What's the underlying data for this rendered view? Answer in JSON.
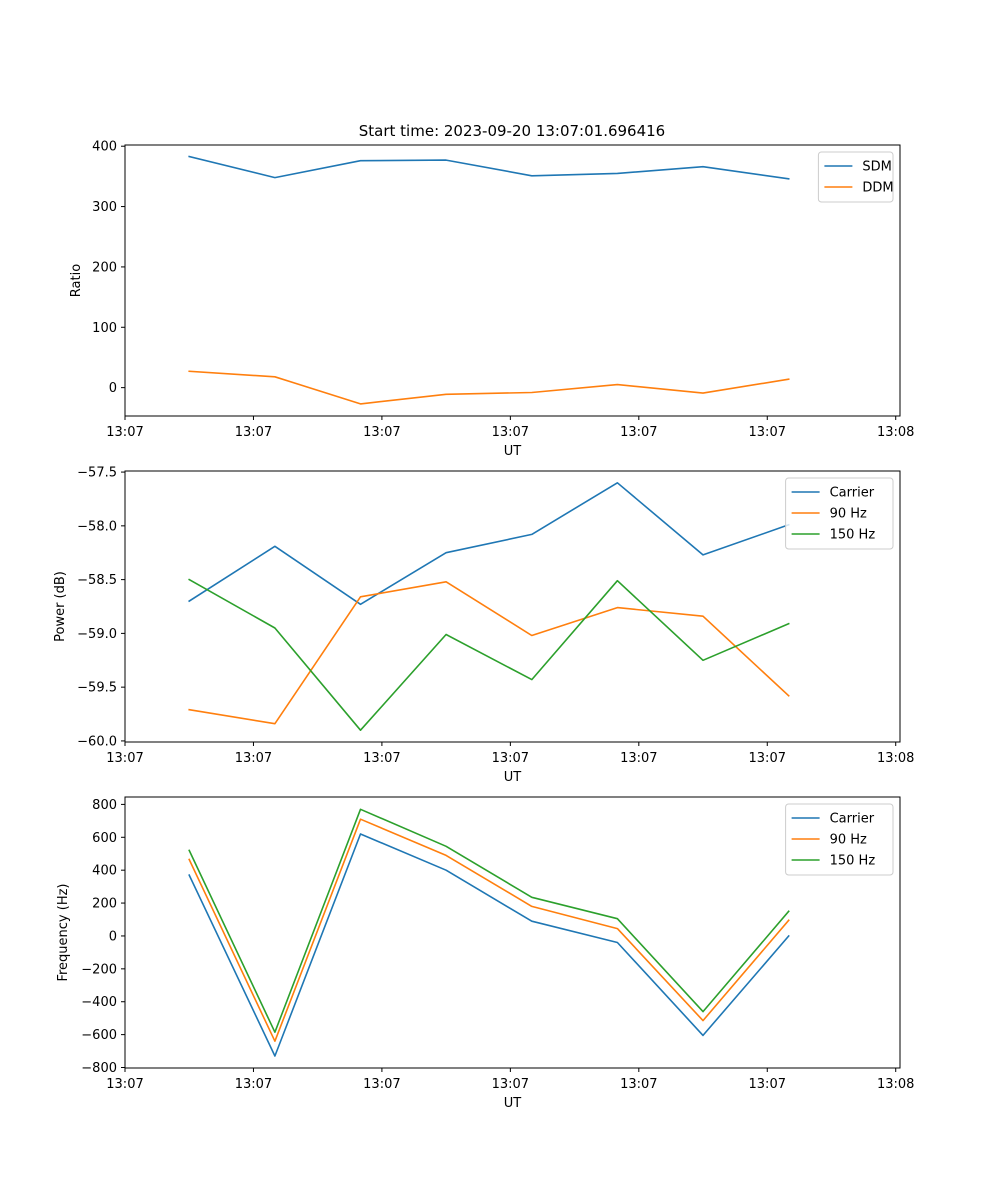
{
  "figure_title": "Start time: 2023-09-20 13:07:01.696416",
  "chart_data": [
    {
      "type": "line",
      "name": "ratio-panel",
      "xlabel": "UT",
      "ylabel": "Ratio",
      "x": [
        1,
        2,
        3,
        4,
        5,
        6,
        7,
        8
      ],
      "xlim": [
        0.25,
        9.3
      ],
      "xticks": [
        0.25,
        1.75,
        3.25,
        4.75,
        6.25,
        7.75,
        9.25
      ],
      "xtick_labels": [
        "13:07",
        "13:07",
        "13:07",
        "13:07",
        "13:07",
        "13:07",
        "13:08"
      ],
      "ylim": [
        -47,
        402
      ],
      "yticks": [
        0,
        100,
        200,
        300,
        400
      ],
      "ytick_labels": [
        "0",
        "100",
        "200",
        "300",
        "400"
      ],
      "legend": "top-right",
      "series": [
        {
          "name": "SDM",
          "color": "#1f77b4",
          "values": [
            383,
            348,
            376,
            377,
            351,
            355,
            366,
            346
          ]
        },
        {
          "name": "DDM",
          "color": "#ff7f0e",
          "values": [
            27,
            18,
            -27,
            -11,
            -8,
            5,
            -9,
            14
          ]
        }
      ]
    },
    {
      "type": "line",
      "name": "power-panel",
      "xlabel": "UT",
      "ylabel": "Power (dB)",
      "x": [
        1,
        2,
        3,
        4,
        5,
        6,
        7,
        8
      ],
      "xlim": [
        0.25,
        9.3
      ],
      "xticks": [
        0.25,
        1.75,
        3.25,
        4.75,
        6.25,
        7.75,
        9.25
      ],
      "xtick_labels": [
        "13:07",
        "13:07",
        "13:07",
        "13:07",
        "13:07",
        "13:07",
        "13:08"
      ],
      "ylim": [
        -60.01,
        -57.49
      ],
      "yticks": [
        -60.0,
        -59.5,
        -59.0,
        -58.5,
        -58.0,
        -57.5
      ],
      "ytick_labels": [
        "−60.0",
        "−59.5",
        "−59.0",
        "−58.5",
        "−58.0",
        "−57.5"
      ],
      "legend": "top-right",
      "series": [
        {
          "name": "Carrier",
          "color": "#1f77b4",
          "values": [
            -58.7,
            -58.19,
            -58.73,
            -58.25,
            -58.08,
            -57.6,
            -58.27,
            -57.99
          ]
        },
        {
          "name": "90 Hz",
          "color": "#ff7f0e",
          "values": [
            -59.71,
            -59.84,
            -58.66,
            -58.52,
            -59.02,
            -58.76,
            -58.84,
            -59.58
          ]
        },
        {
          "name": "150 Hz",
          "color": "#2ca02c",
          "values": [
            -58.5,
            -58.95,
            -59.9,
            -59.01,
            -59.43,
            -58.51,
            -59.25,
            -58.91
          ]
        }
      ]
    },
    {
      "type": "line",
      "name": "frequency-panel",
      "xlabel": "UT",
      "ylabel": "Frequency (Hz)",
      "x": [
        1,
        2,
        3,
        4,
        5,
        6,
        7,
        8
      ],
      "xlim": [
        0.25,
        9.3
      ],
      "xticks": [
        0.25,
        1.75,
        3.25,
        4.75,
        6.25,
        7.75,
        9.25
      ],
      "xtick_labels": [
        "13:07",
        "13:07",
        "13:07",
        "13:07",
        "13:07",
        "13:07",
        "13:08"
      ],
      "ylim": [
        -803,
        845
      ],
      "yticks": [
        -800,
        -600,
        -400,
        -200,
        0,
        200,
        400,
        600,
        800
      ],
      "ytick_labels": [
        "−800",
        "−600",
        "−400",
        "−200",
        "0",
        "200",
        "400",
        "600",
        "800"
      ],
      "legend": "top-right",
      "series": [
        {
          "name": "Carrier",
          "color": "#1f77b4",
          "values": [
            370,
            -730,
            620,
            400,
            90,
            -40,
            -605,
            0
          ]
        },
        {
          "name": "90 Hz",
          "color": "#ff7f0e",
          "values": [
            465,
            -640,
            710,
            490,
            180,
            45,
            -515,
            95
          ]
        },
        {
          "name": "150 Hz",
          "color": "#2ca02c",
          "values": [
            520,
            -585,
            770,
            545,
            235,
            105,
            -460,
            150
          ]
        }
      ]
    }
  ]
}
